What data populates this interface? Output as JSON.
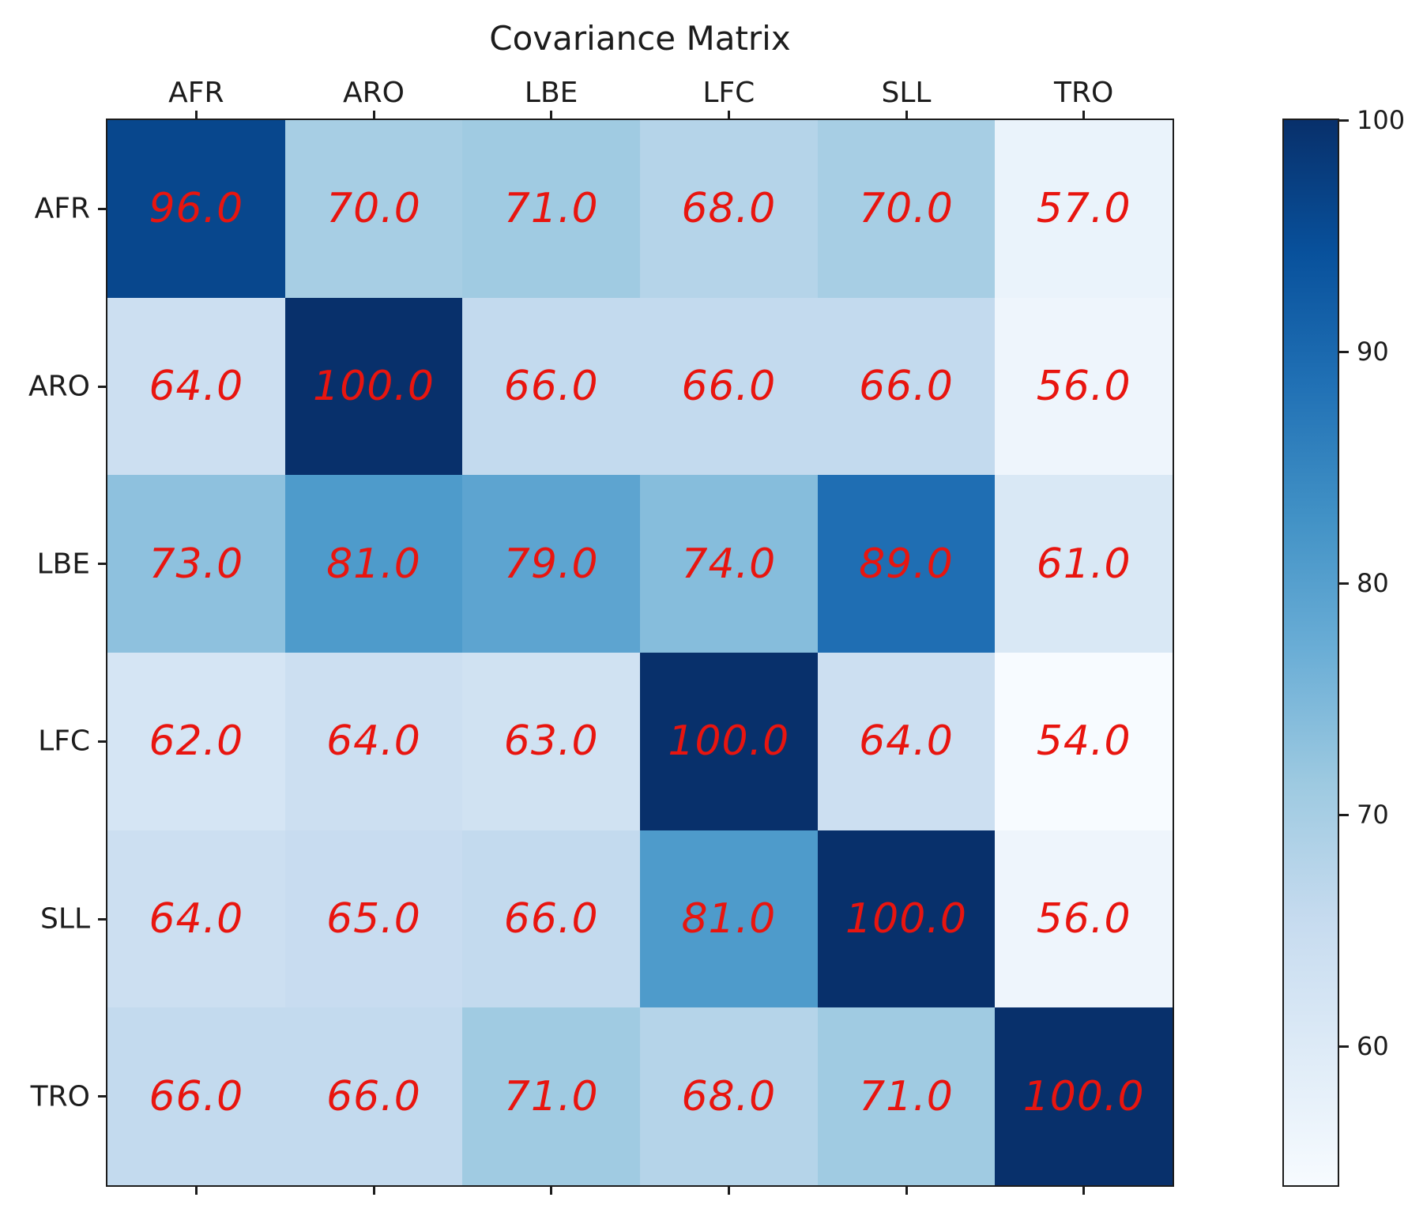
{
  "chart_data": {
    "type": "heatmap",
    "title": "Covariance Matrix",
    "categories": [
      "AFR",
      "ARO",
      "LBE",
      "LFC",
      "SLL",
      "TRO"
    ],
    "rows": [
      "AFR",
      "ARO",
      "LBE",
      "LFC",
      "SLL",
      "TRO"
    ],
    "values": [
      [
        96.0,
        70.0,
        71.0,
        68.0,
        70.0,
        57.0
      ],
      [
        64.0,
        100.0,
        66.0,
        66.0,
        66.0,
        56.0
      ],
      [
        73.0,
        81.0,
        79.0,
        74.0,
        89.0,
        61.0
      ],
      [
        62.0,
        64.0,
        63.0,
        100.0,
        64.0,
        54.0
      ],
      [
        64.0,
        65.0,
        66.0,
        81.0,
        100.0,
        56.0
      ],
      [
        66.0,
        66.0,
        71.0,
        68.0,
        71.0,
        100.0
      ]
    ],
    "value_decimals": 1,
    "vmin": 54,
    "vmax": 100,
    "grid": false,
    "annotation_color": "#e8150f",
    "annotation_style": "italic",
    "axis_color": "#1c1c1c",
    "colormap": {
      "name": "Blues",
      "anchors": [
        "#f7fbff",
        "#deebf7",
        "#c6dbef",
        "#9ecae1",
        "#6baed6",
        "#4292c6",
        "#2171b5",
        "#08519c",
        "#08306b"
      ]
    },
    "colorbar": {
      "position": "right",
      "ticks": [
        60,
        70,
        80,
        90,
        100
      ]
    }
  }
}
